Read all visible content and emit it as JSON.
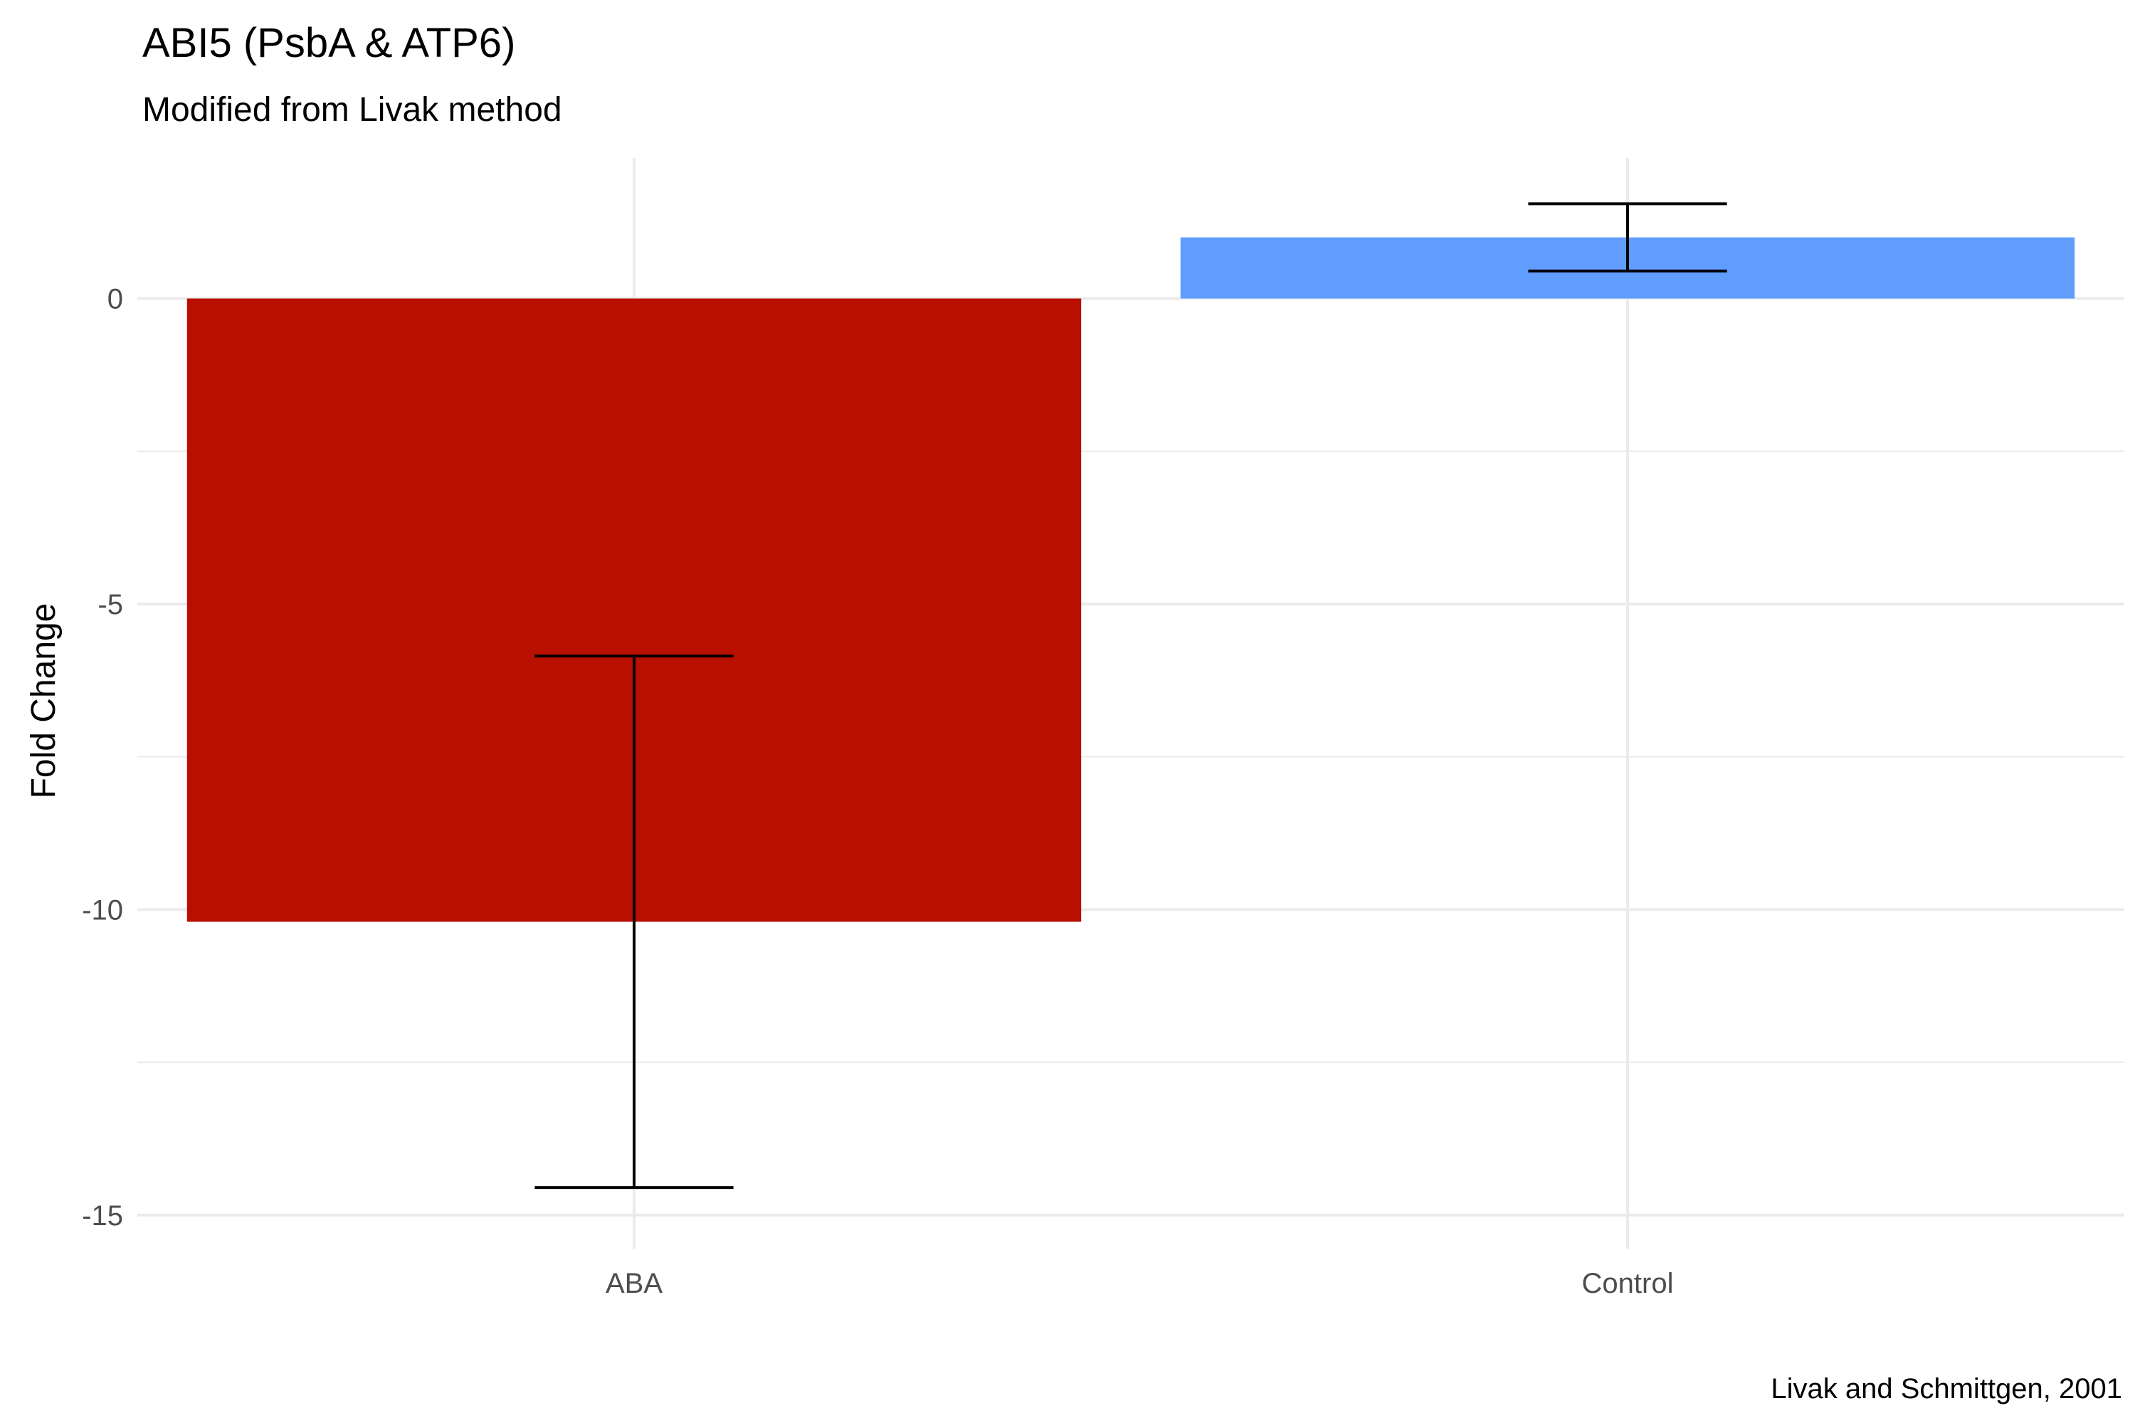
{
  "chart_data": {
    "type": "bar",
    "title": "ABI5 (PsbA & ATP6)",
    "subtitle": "Modified from Livak method",
    "xlabel": "",
    "ylabel": "Fold Change",
    "caption": "Livak and Schmittgen, 2001",
    "categories": [
      "ABA",
      "Control"
    ],
    "values": [
      -10.2,
      1.0
    ],
    "error_bars": [
      {
        "low": -14.55,
        "high": -5.85
      },
      {
        "low": 0.45,
        "high": 1.55
      }
    ],
    "colors": [
      "#b80f00",
      "#619cff"
    ],
    "ylim": [
      -15.55,
      2.3
    ],
    "yticks": [
      0,
      -5,
      -10,
      -15
    ],
    "grid": true,
    "legend": "none"
  }
}
